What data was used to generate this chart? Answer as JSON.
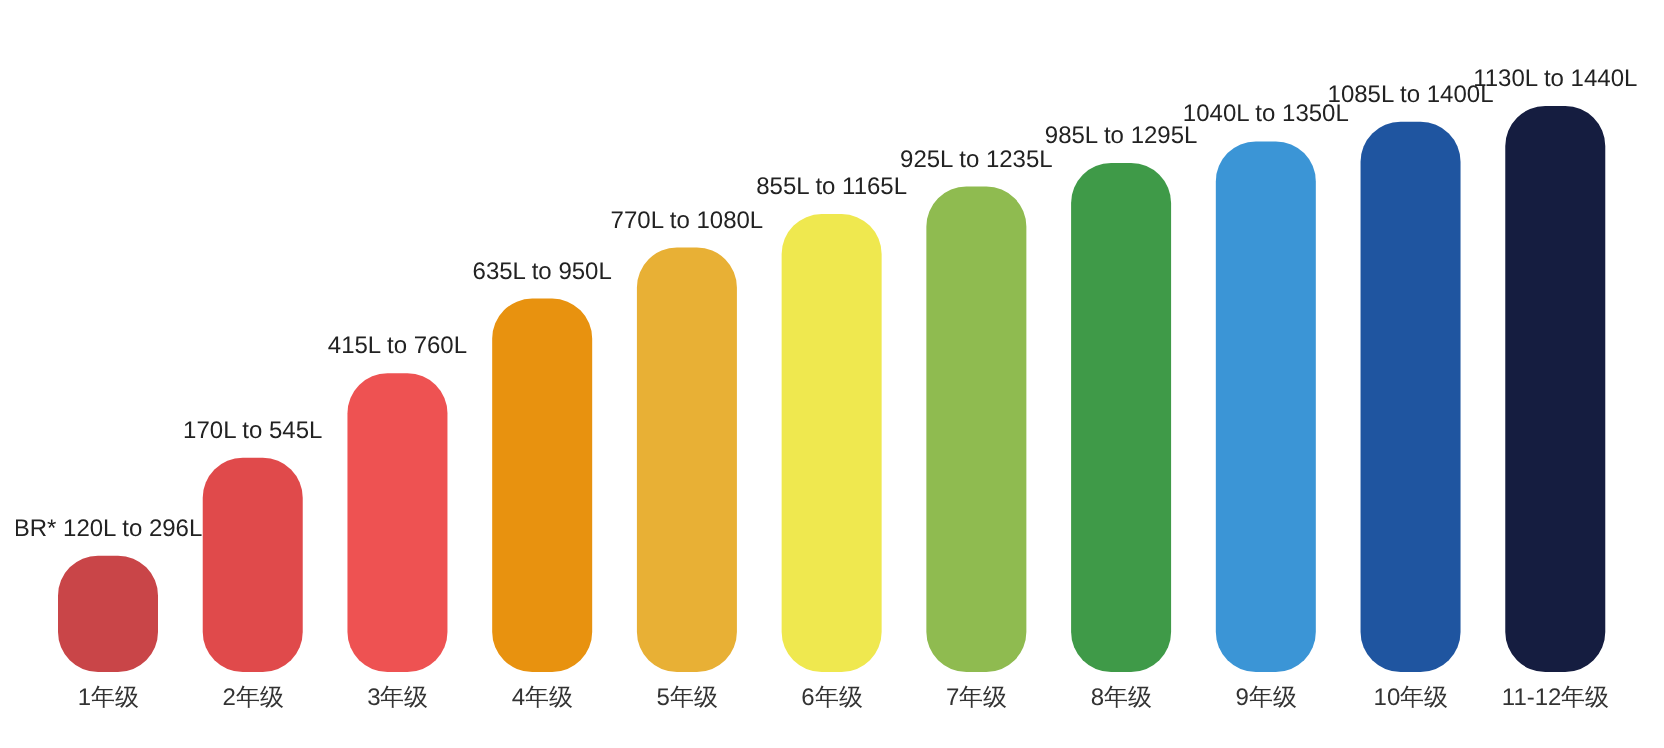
{
  "chart_data": {
    "type": "bar",
    "categories": [
      "1年级",
      "2年级",
      "3年级",
      "4年级",
      "5年级",
      "6年级",
      "7年级",
      "8年级",
      "9年级",
      "10年级",
      "11-12年级"
    ],
    "values": [
      296,
      545,
      760,
      950,
      1080,
      1165,
      1235,
      1295,
      1350,
      1400,
      1440
    ],
    "value_labels": [
      "BR* 120L to 296L",
      "170L to 545L",
      "415L to 760L",
      "635L to 950L",
      "770L to 1080L",
      "855L to 1165L",
      "925L to 1235L",
      "985L to 1295L",
      "1040L to 1350L",
      "1085L to 1400L",
      "1130L to 1440L"
    ],
    "colors": [
      "#c94548",
      "#e04a4b",
      "#ee5252",
      "#e8920f",
      "#e8b035",
      "#efe84f",
      "#8fbb50",
      "#3f9a48",
      "#3b95d6",
      "#1f55a0",
      "#151d40"
    ],
    "ylim": [
      0,
      1440
    ],
    "tick_labels": "x",
    "grid": false,
    "legend": false
  }
}
